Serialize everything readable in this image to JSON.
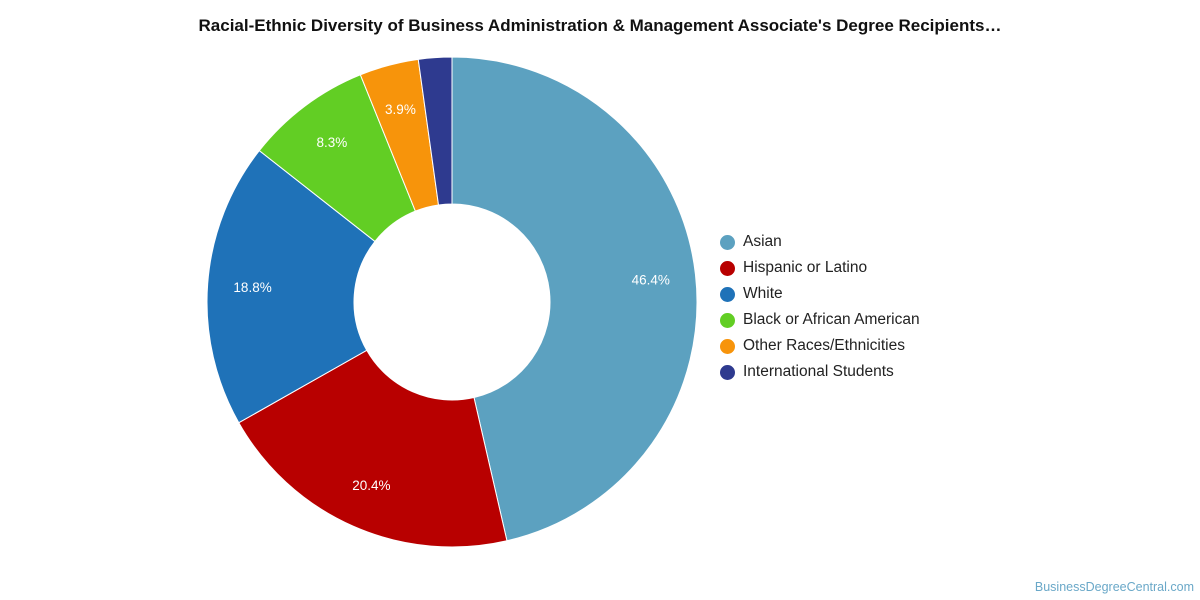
{
  "title": "Racial-Ethnic Diversity of Business Administration & Management Associate's Degree Recipients…",
  "credit": "BusinessDegreeCentral.com",
  "chart_data": {
    "type": "pie",
    "variant": "donut",
    "legend_position": "right",
    "series": [
      {
        "name": "Asian",
        "value": 46.4,
        "label": "46.4%",
        "color": "#5ca1c0"
      },
      {
        "name": "Hispanic or Latino",
        "value": 20.4,
        "label": "20.4%",
        "color": "#b80000"
      },
      {
        "name": "White",
        "value": 18.8,
        "label": "18.8%",
        "color": "#1f72b8"
      },
      {
        "name": "Black or African American",
        "value": 8.3,
        "label": "8.3%",
        "color": "#62ce24"
      },
      {
        "name": "Other Races/Ethnicities",
        "value": 3.9,
        "label": "3.9%",
        "color": "#f7940b"
      },
      {
        "name": "International Students",
        "value": 2.2,
        "label": "",
        "color": "#2e3a8f"
      }
    ]
  }
}
